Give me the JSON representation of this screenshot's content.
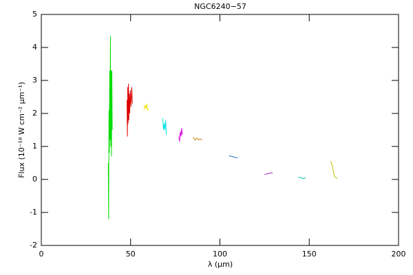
{
  "chart_data": {
    "type": "line",
    "title": "NGC6240−57",
    "x_label": "λ (μm)",
    "y_label": "Flux (10⁻¹⁸ W cm⁻² μm⁻¹)",
    "xlim": [
      0,
      200
    ],
    "xticks": [
      0,
      50,
      100,
      150,
      200
    ],
    "ylim": [
      -2,
      5
    ],
    "yticks": [
      -2,
      -1,
      0,
      1,
      2,
      3,
      4,
      5
    ],
    "series": [
      {
        "color": "#00dd00",
        "x": [
          37.5,
          37.7,
          37.9,
          38.1,
          38.3,
          38.5,
          38.7,
          38.9,
          39.1,
          39.3,
          39.5,
          39.7
        ],
        "values": [
          0.5,
          -1.2,
          2.1,
          0.8,
          3.3,
          1.2,
          4.35,
          1.0,
          3.3,
          0.7,
          3.3,
          1.5
        ]
      },
      {
        "color": "#dd0000",
        "x": [
          48.0,
          48.2,
          48.4,
          48.6,
          48.8,
          49.0,
          49.2,
          49.5,
          49.8,
          50.2,
          50.6,
          51.0
        ],
        "values": [
          2.4,
          1.3,
          2.8,
          1.7,
          2.9,
          1.8,
          2.6,
          2.0,
          2.7,
          2.2,
          2.8,
          2.3
        ]
      },
      {
        "color": "#f0e000",
        "x": [
          57.5,
          58,
          58.5,
          59,
          59.5,
          60
        ],
        "values": [
          2.1,
          2.25,
          2.15,
          2.3,
          2.1,
          2.15
        ]
      },
      {
        "color": "#00e0e0",
        "x": [
          68,
          68.4,
          68.8,
          69.2,
          69.6,
          70
        ],
        "values": [
          1.85,
          1.5,
          1.7,
          1.5,
          1.8,
          1.35
        ]
      },
      {
        "color": "#e000e0",
        "x": [
          77,
          77.4,
          77.8,
          78.2,
          78.6,
          79
        ],
        "values": [
          1.3,
          1.15,
          1.45,
          1.3,
          1.55,
          1.35
        ]
      },
      {
        "color": "#c08000",
        "x": [
          85,
          86,
          87,
          88,
          89,
          90
        ],
        "values": [
          1.28,
          1.2,
          1.25,
          1.2,
          1.22,
          1.2
        ]
      },
      {
        "color": "#2070c0",
        "x": [
          105,
          106,
          107,
          108,
          109,
          110
        ],
        "values": [
          0.72,
          0.7,
          0.7,
          0.67,
          0.66,
          0.65
        ]
      },
      {
        "color": "#a020c0",
        "x": [
          125,
          126.5,
          128,
          129.5
        ],
        "values": [
          0.15,
          0.17,
          0.19,
          0.2
        ]
      },
      {
        "color": "#00c0b0",
        "x": [
          144,
          145,
          146,
          147,
          148
        ],
        "values": [
          0.08,
          0.05,
          0.04,
          0.03,
          0.05
        ]
      },
      {
        "color": "#c0c000",
        "x": [
          162,
          163,
          164,
          165,
          166
        ],
        "values": [
          0.55,
          0.4,
          0.1,
          0.05,
          0.03
        ]
      }
    ]
  }
}
